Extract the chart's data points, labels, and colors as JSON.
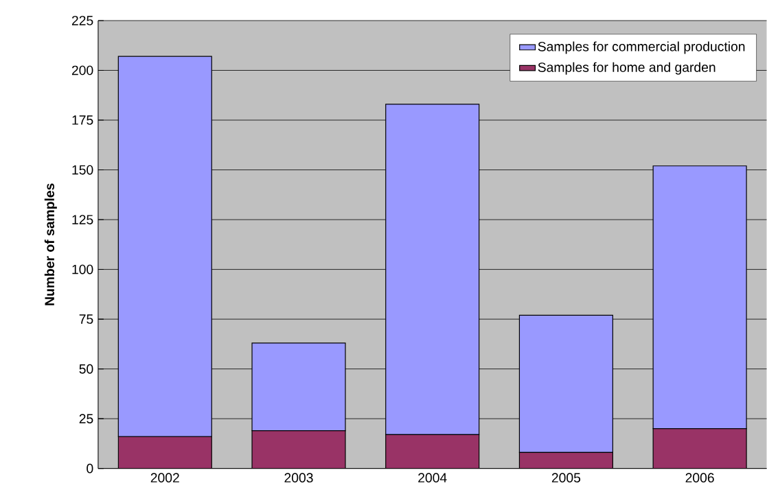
{
  "chart_data": {
    "type": "bar",
    "stacked": true,
    "ylabel": "Number of samples",
    "categories": [
      "2002",
      "2003",
      "2004",
      "2005",
      "2006"
    ],
    "series": [
      {
        "name": "Samples for home and garden",
        "color": "#993366",
        "values": [
          16,
          19,
          17,
          8,
          20
        ]
      },
      {
        "name": "Samples for commercial production",
        "color": "#9999ff",
        "values": [
          191,
          44,
          166,
          69,
          132
        ]
      }
    ],
    "ylim": [
      0,
      225
    ],
    "yticks": [
      0,
      25,
      50,
      75,
      100,
      125,
      150,
      175,
      200,
      225
    ],
    "grid": "y",
    "legend": "top right"
  }
}
